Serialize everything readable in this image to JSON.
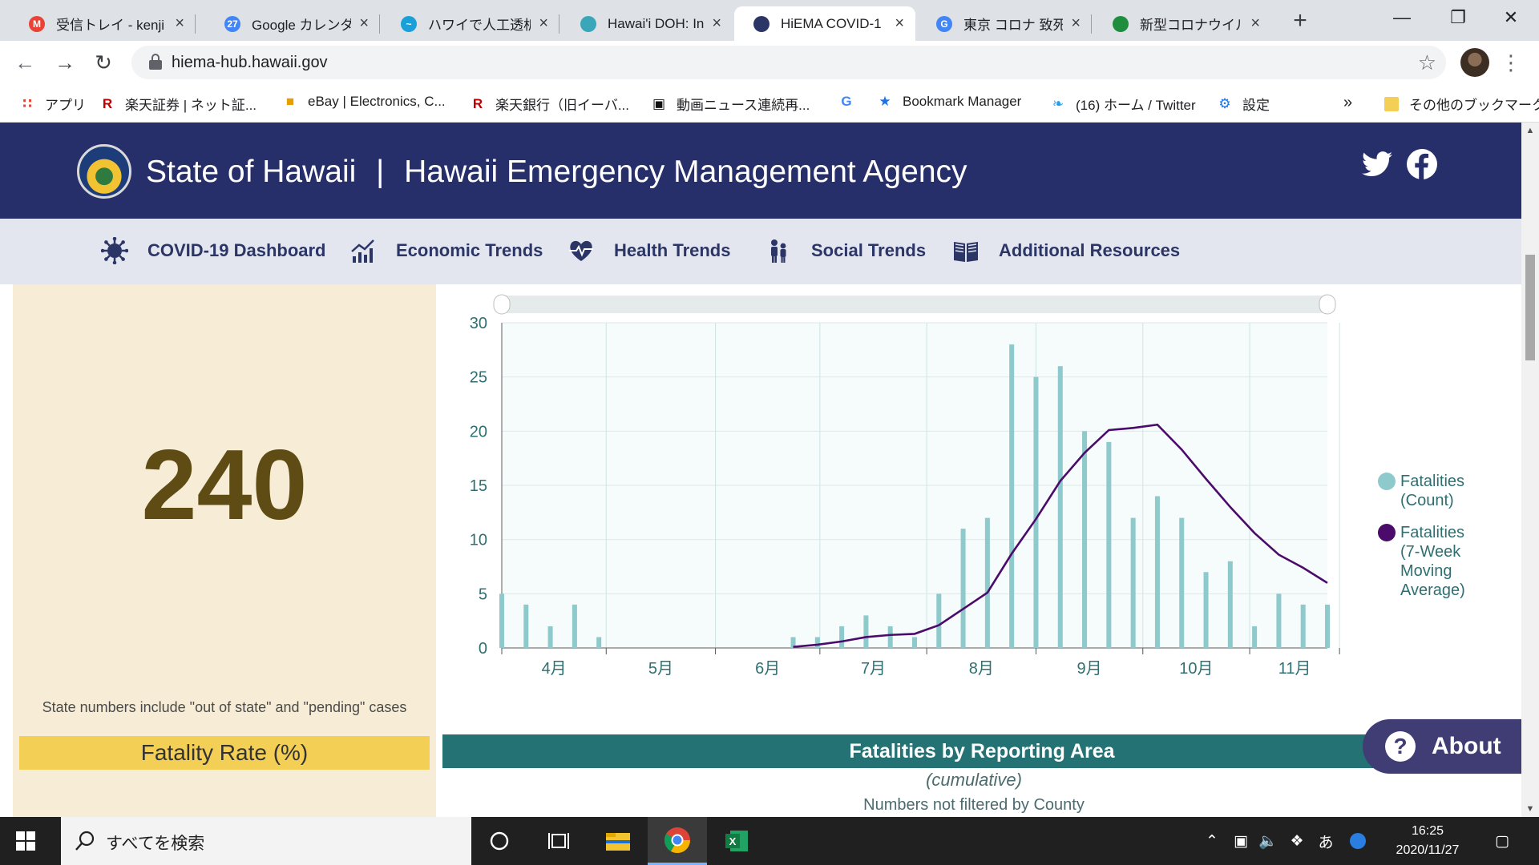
{
  "browser": {
    "tabs": [
      {
        "title": "受信トレイ - kenji",
        "icon": "gmail-icon",
        "color": "#ea4335"
      },
      {
        "title": "Google カレンダー",
        "icon": "calendar-icon",
        "color": "#4285f4"
      },
      {
        "title": "ハワイで人工透析",
        "icon": "wave-icon",
        "color": "#1aa0d8"
      },
      {
        "title": "Hawai'i DOH: Inf",
        "icon": "globe-icon",
        "color": "#3aa6b9"
      },
      {
        "title": "HiEMA COVID-1",
        "icon": "hiema-icon",
        "color": "#2b3566",
        "active": true
      },
      {
        "title": "東京 コロナ 致死",
        "icon": "google-icon",
        "color": "#4285f4"
      },
      {
        "title": "新型コロナウイルス",
        "icon": "tree-icon",
        "color": "#1e8e3e"
      }
    ],
    "url": "hiema-hub.hawaii.gov",
    "bookmarks": [
      {
        "label": "アプリ",
        "icon": "apps-icon"
      },
      {
        "label": "楽天証券 | ネット証...",
        "icon": "rakuten-icon"
      },
      {
        "label": "eBay | Electronics, C...",
        "icon": "ebay-icon"
      },
      {
        "label": "楽天銀行（旧イーバ...",
        "icon": "rakuten-icon"
      },
      {
        "label": "動画ニュース連続再...",
        "icon": "news-icon"
      },
      {
        "label": "",
        "icon": "google-icon"
      },
      {
        "label": "Bookmark Manager",
        "icon": "star-icon"
      },
      {
        "label": "(16) ホーム / Twitter",
        "icon": "twitter-icon"
      },
      {
        "label": "設定",
        "icon": "gear-icon"
      }
    ],
    "more_bookmarks": "»",
    "other_bookmarks": "その他のブックマーク"
  },
  "site": {
    "title_left": "State of Hawaii",
    "title_sep": "|",
    "title_right": "Hawaii Emergency Management Agency",
    "nav": [
      {
        "label": "COVID-19 Dashboard",
        "icon": "virus-icon"
      },
      {
        "label": "Economic Trends",
        "icon": "chart-up-icon"
      },
      {
        "label": "Health Trends",
        "icon": "heart-pulse-icon"
      },
      {
        "label": "Social Trends",
        "icon": "people-icon"
      },
      {
        "label": "Additional Resources",
        "icon": "book-icon"
      }
    ]
  },
  "summary": {
    "value": "240",
    "note": "State numbers include \"out of state\" and \"pending\" cases",
    "fatality_rate_label": "Fatality Rate (%)"
  },
  "chart_data": {
    "type": "bar",
    "y_ticks": [
      "0",
      "5",
      "10",
      "15",
      "20",
      "25",
      "30"
    ],
    "ylim": [
      0,
      30
    ],
    "x_month_labels": [
      "4月",
      "5月",
      "6月",
      "7月",
      "8月",
      "9月",
      "10月",
      "11月"
    ],
    "weeks": 35,
    "grid": true,
    "legend_position": "right",
    "series": [
      {
        "name": "Fatalities (Count)",
        "type": "bar",
        "color": "#8ec9cb",
        "values": [
          5,
          4,
          2,
          4,
          1,
          0,
          0,
          0,
          0,
          0,
          0,
          0,
          1,
          1,
          2,
          3,
          2,
          1,
          5,
          11,
          12,
          28,
          25,
          26,
          20,
          19,
          12,
          14,
          12,
          7,
          8,
          2,
          5,
          4,
          4
        ]
      },
      {
        "name": "Fatalities (7-Week Moving Average)",
        "type": "line",
        "color": "#4b0b6b",
        "start_week": 12,
        "values": [
          0.1,
          0.3,
          0.6,
          1.0,
          1.2,
          1.3,
          2.1,
          3.6,
          5.1,
          8.7,
          11.9,
          15.4,
          18.0,
          20.1,
          20.3,
          20.6,
          18.3,
          15.6,
          13.0,
          10.6,
          8.6,
          7.4,
          6.0
        ]
      }
    ],
    "legend": [
      {
        "lines": [
          "Fatalities",
          "(Count)"
        ],
        "color": "#8ec9cb"
      },
      {
        "lines": [
          "Fatalities",
          "(7-Week",
          "Moving",
          "Average)"
        ],
        "color": "#4b0b6b"
      }
    ]
  },
  "area_section": {
    "title": "Fatalities by Reporting Area",
    "subtitle": "(cumulative)",
    "note": "Numbers not filtered by County"
  },
  "about": {
    "label": "About",
    "icon": "question-icon"
  },
  "taskbar": {
    "search_placeholder": "すべてを検索",
    "apps": [
      "cortana-icon",
      "task-view-icon",
      "file-explorer-icon",
      "chrome-icon",
      "excel-icon"
    ],
    "ime": "あ",
    "time": "16:25",
    "date": "2020/11/27"
  }
}
